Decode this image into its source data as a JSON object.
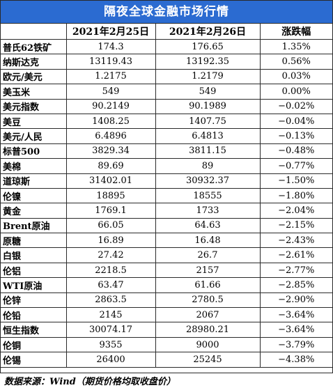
{
  "title": "隔夜全球金融市场行情",
  "headers": [
    "",
    "2021年2月25日",
    "2021年2月26日",
    "涨跌幅"
  ],
  "rows": [
    [
      "普氏62铁矿",
      "174.3",
      "176.65",
      "1.35%"
    ],
    [
      "纳斯达克",
      "13119.43",
      "13192.35",
      "0.56%"
    ],
    [
      "欧元/美元",
      "1.2175",
      "1.2179",
      "0.03%"
    ],
    [
      "美玉米",
      "549",
      "549",
      "0.00%"
    ],
    [
      "美元指数",
      "90.2149",
      "90.1989",
      "−0.02%"
    ],
    [
      "美豆",
      "1408.25",
      "1407.75",
      "−0.04%"
    ],
    [
      "美元/人民",
      "6.4896",
      "6.4813",
      "−0.13%"
    ],
    [
      "标普500",
      "3829.34",
      "3811.15",
      "−0.48%"
    ],
    [
      "美棉",
      "89.69",
      "89",
      "−0.77%"
    ],
    [
      "道琼斯",
      "31402.01",
      "30932.37",
      "−1.50%"
    ],
    [
      "伦镍",
      "18895",
      "18555",
      "−1.80%"
    ],
    [
      "黄金",
      "1769.1",
      "1733",
      "−2.04%"
    ],
    [
      "Brent原油",
      "66.05",
      "64.63",
      "−2.15%"
    ],
    [
      "原糖",
      "16.89",
      "16.48",
      "−2.43%"
    ],
    [
      "白银",
      "27.42",
      "26.7",
      "−2.61%"
    ],
    [
      "伦铝",
      "2218.5",
      "2157",
      "−2.77%"
    ],
    [
      "WTI原油",
      "63.47",
      "61.66",
      "−2.85%"
    ],
    [
      "伦锌",
      "2863.5",
      "2780.5",
      "−2.90%"
    ],
    [
      "伦铅",
      "2145",
      "2067",
      "−3.64%"
    ],
    [
      "恒生指数",
      "30074.17",
      "28980.21",
      "−3.64%"
    ],
    [
      "伦铜",
      "9355",
      "9000",
      "−3.79%"
    ],
    [
      "伦锡",
      "26400",
      "25245",
      "−4.38%"
    ]
  ],
  "footer": "数据来源：Wind（期货价格均取收盘价）",
  "colors": {
    "title_bg": "#2b6bd1",
    "title_text": "#ffffff",
    "border": "#2a2a2a"
  }
}
